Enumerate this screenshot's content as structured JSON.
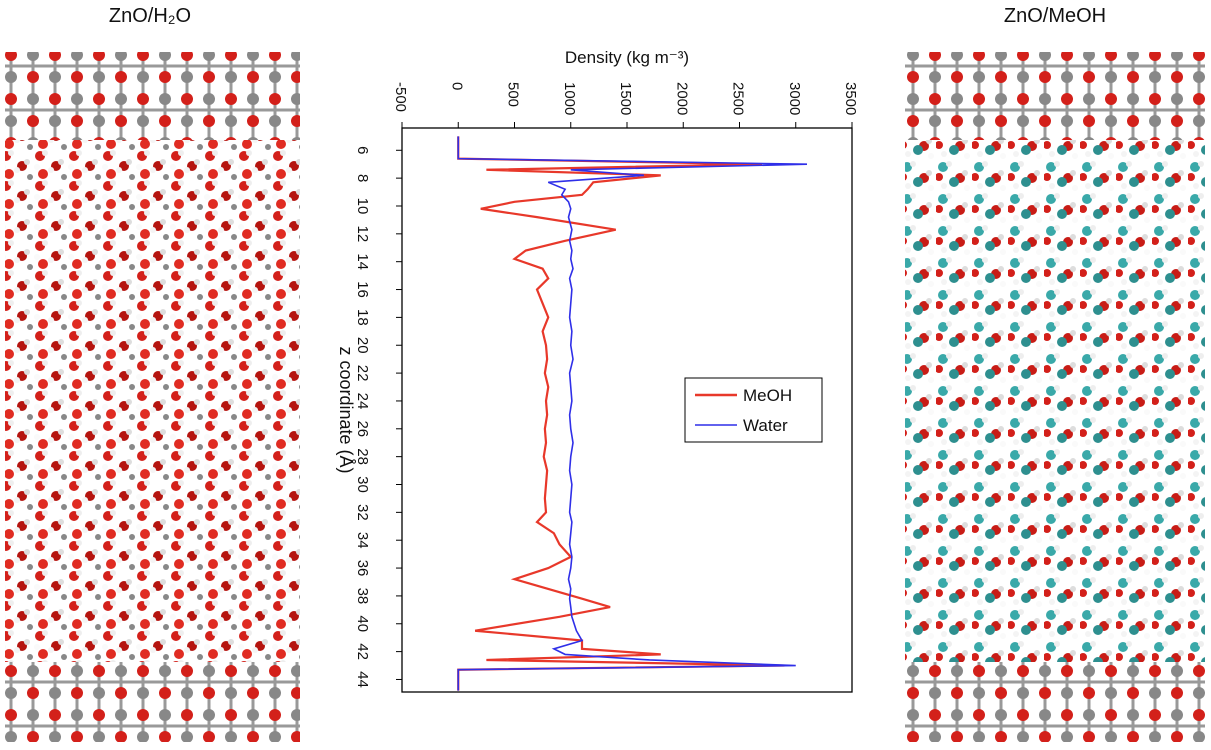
{
  "left_panel": {
    "title": "ZnO/H₂O"
  },
  "right_panel": {
    "title": "ZnO/MeOH"
  },
  "chart_data": {
    "type": "line",
    "orientation": "horizontal",
    "value_axis_label": "Density (kg m⁻³)",
    "position_axis_label": "z coordinate (Å)",
    "ylim": [
      -500,
      3500
    ],
    "yticks": [
      -500,
      0,
      500,
      1000,
      1500,
      2000,
      2500,
      3000,
      3500
    ],
    "xlim": [
      4.4,
      44.9
    ],
    "xticks": [
      6,
      8,
      10,
      12,
      14,
      16,
      18,
      20,
      22,
      24,
      26,
      28,
      30,
      32,
      34,
      36,
      38,
      40,
      42,
      44
    ],
    "x": [
      5,
      6,
      6.6,
      7.0,
      7.4,
      7.8,
      8.3,
      8.8,
      9.2,
      9.7,
      10.2,
      10.8,
      11.7,
      12.5,
      13.2,
      13.8,
      14.5,
      15.2,
      16,
      17,
      18,
      19,
      20,
      21,
      22,
      23,
      24,
      25,
      26,
      27,
      28,
      29,
      30,
      31,
      32,
      32.7,
      33.5,
      34.3,
      35.2,
      36,
      36.8,
      37.5,
      38.2,
      38.8,
      39.5,
      40.5,
      41.2,
      41.8,
      42.2,
      42.6,
      43.0,
      43.3,
      44,
      44.8
    ],
    "series": [
      {
        "name": "MeOH",
        "color": "#e8382a",
        "values": [
          0,
          0,
          0,
          2700,
          250,
          1800,
          1200,
          1150,
          1100,
          500,
          200,
          700,
          1400,
          950,
          600,
          500,
          750,
          800,
          700,
          750,
          800,
          750,
          780,
          790,
          770,
          800,
          780,
          790,
          770,
          780,
          760,
          790,
          780,
          770,
          780,
          700,
          850,
          900,
          1000,
          800,
          500,
          800,
          1100,
          1350,
          900,
          150,
          1100,
          1100,
          1800,
          250,
          2900,
          0,
          0,
          0
        ]
      },
      {
        "name": "Water",
        "color": "#2f2fe8",
        "values": [
          0,
          0,
          0,
          3100,
          1000,
          1650,
          800,
          950,
          920,
          980,
          1000,
          980,
          1010,
          990,
          1010,
          1000,
          1020,
          990,
          1010,
          1000,
          990,
          1010,
          1000,
          1020,
          990,
          1000,
          1010,
          990,
          1000,
          1020,
          1000,
          990,
          1010,
          1000,
          990,
          1010,
          1000,
          990,
          1010,
          1000,
          980,
          1000,
          990,
          1000,
          1010,
          1050,
          1100,
          850,
          950,
          1700,
          3000,
          0,
          0,
          0
        ]
      }
    ],
    "legend": "center-right"
  }
}
